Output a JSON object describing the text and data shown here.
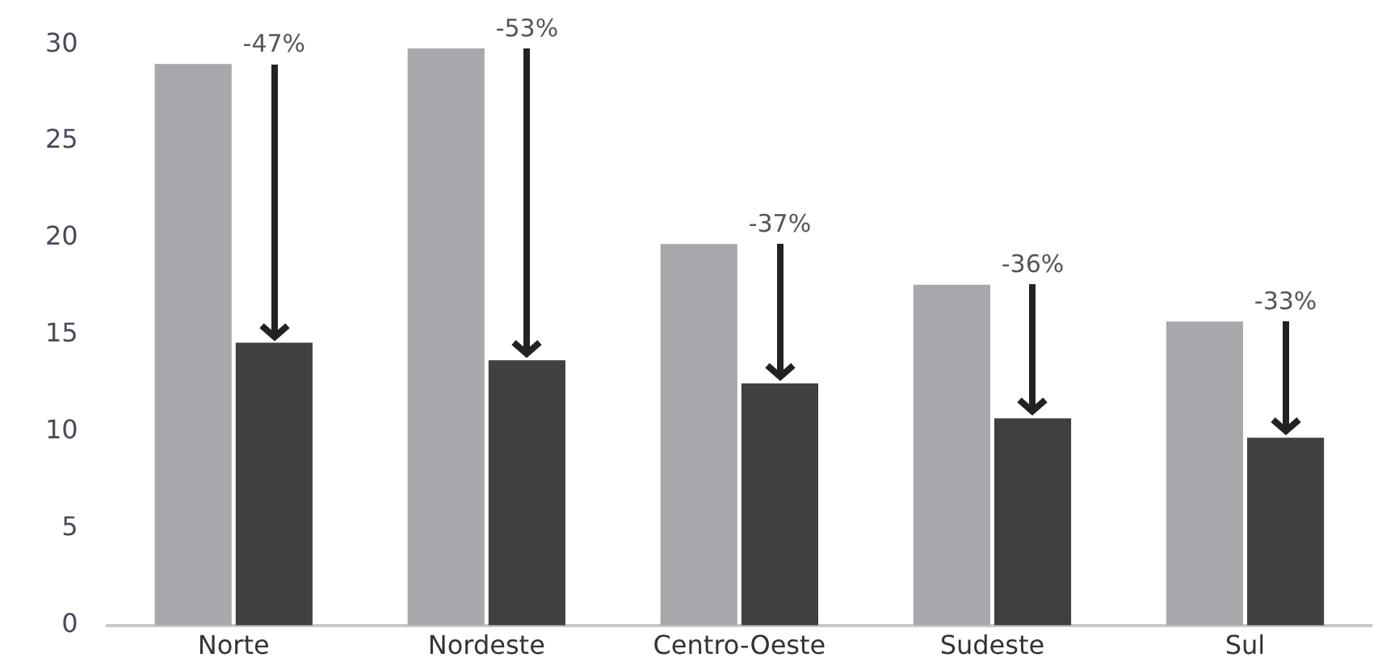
{
  "chart_data": {
    "type": "bar",
    "categories": [
      "Norte",
      "Nordeste",
      "Centro-Oeste",
      "Sudeste",
      "Sul"
    ],
    "series": [
      {
        "color": "#a7a8ab",
        "values": [
          29,
          29.8,
          19.7,
          17.6,
          15.7
        ]
      },
      {
        "color": "#404040",
        "values": [
          14.6,
          13.7,
          12.5,
          10.7,
          9.7
        ]
      }
    ],
    "ylim": [
      0,
      30
    ],
    "yticks": [
      0,
      5,
      10,
      15,
      20,
      25,
      30
    ],
    "grid": false,
    "legend": false,
    "annotations": [
      {
        "text": "-47%",
        "x": "Norte",
        "y": 29
      },
      {
        "text": "-53%",
        "x": "Nordeste",
        "y": 29.8
      },
      {
        "text": "-37%",
        "x": "Centro-Oeste",
        "y": 19.7
      },
      {
        "text": "-36%",
        "x": "Sudeste",
        "y": 17.6
      },
      {
        "text": "-33%",
        "x": "Sul",
        "y": 15.7
      }
    ]
  }
}
